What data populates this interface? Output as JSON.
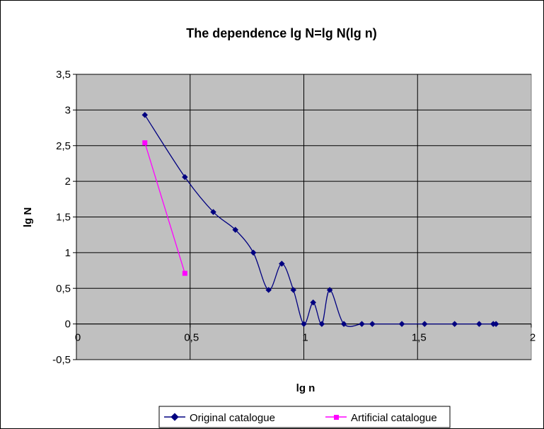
{
  "chart_data": {
    "type": "line",
    "title": "The dependence lg N=lg N(lg n)",
    "xlabel": "lg n",
    "ylabel": "lg N",
    "xlim": [
      0,
      2
    ],
    "ylim": [
      -0.5,
      3.5
    ],
    "x_ticks": [
      "0",
      "0,5",
      "1",
      "1,5",
      "2"
    ],
    "y_ticks": [
      "3,5",
      "3",
      "2,5",
      "2",
      "1,5",
      "1",
      "0,5",
      "0",
      "-0,5"
    ],
    "grid": true,
    "legend_position": "bottom",
    "colors": {
      "plot_background": "#c0c0c0",
      "original": "#000080",
      "artificial": "#ff00ff"
    },
    "series": [
      {
        "name": "Original catalogue",
        "marker": "diamond",
        "points": [
          [
            0.301,
            2.93
          ],
          [
            0.477,
            2.06
          ],
          [
            0.602,
            1.57
          ],
          [
            0.699,
            1.32
          ],
          [
            0.778,
            1.0
          ],
          [
            0.845,
            0.477
          ],
          [
            0.903,
            0.845
          ],
          [
            0.954,
            0.477
          ],
          [
            1.0,
            0.0
          ],
          [
            1.041,
            0.301
          ],
          [
            1.079,
            0.0
          ],
          [
            1.114,
            0.477
          ],
          [
            1.176,
            0.0
          ],
          [
            1.255,
            0.0
          ],
          [
            1.301,
            0.0
          ],
          [
            1.431,
            0.0
          ],
          [
            1.531,
            0.0
          ],
          [
            1.663,
            0.0
          ],
          [
            1.771,
            0.0
          ],
          [
            1.833,
            0.0
          ],
          [
            1.845,
            0.0
          ]
        ]
      },
      {
        "name": "Artificial catalogue",
        "marker": "square",
        "points": [
          [
            0.301,
            2.54
          ],
          [
            0.477,
            0.71
          ]
        ]
      }
    ]
  }
}
